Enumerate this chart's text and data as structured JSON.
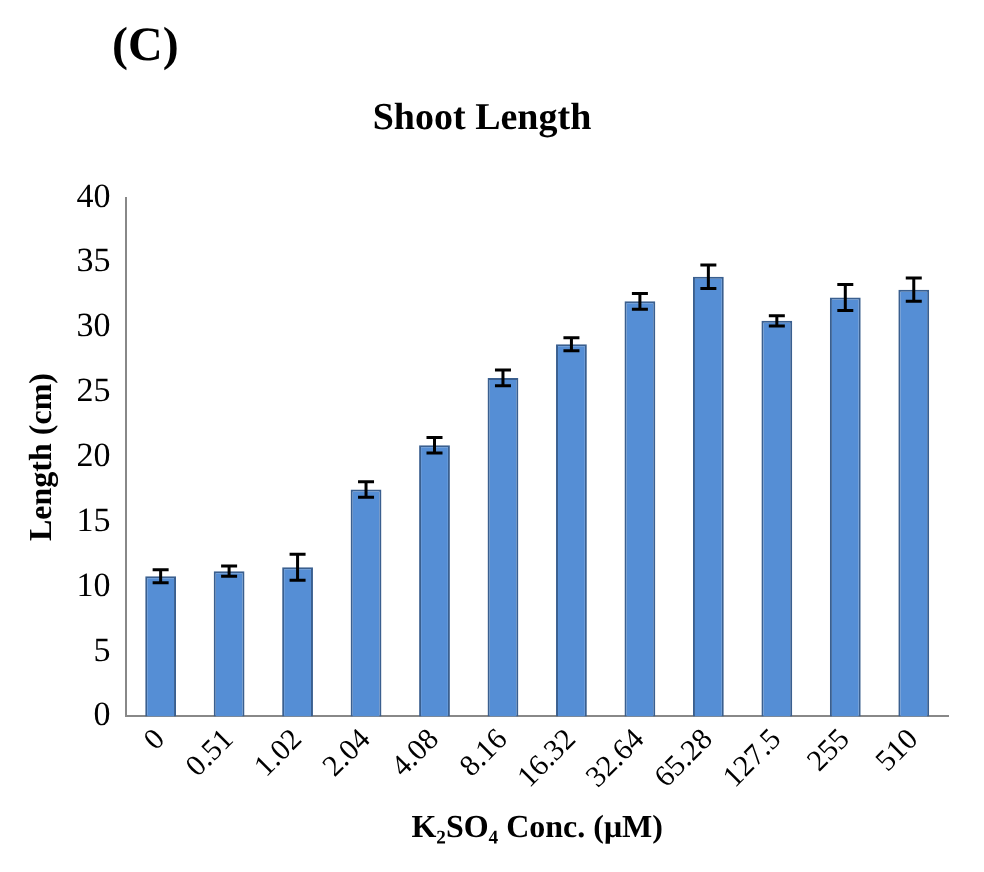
{
  "chart_data": {
    "type": "bar",
    "title": "Shoot Length",
    "xlabel": "K₂SO₄ Conc. (μM)",
    "ylabel": "Length (cm)",
    "annotations": [
      "(C)"
    ],
    "categories": [
      "0",
      "0.51",
      "1.02",
      "2.04",
      "4.08",
      "8.16",
      "16.32",
      "32.64",
      "65.28",
      "127.5",
      "255",
      "510"
    ],
    "values": [
      10.8,
      11.2,
      11.5,
      17.5,
      20.9,
      26.1,
      28.7,
      32.0,
      33.9,
      30.5,
      32.3,
      32.9
    ],
    "errors": [
      0.5,
      0.4,
      1.0,
      0.6,
      0.6,
      0.6,
      0.5,
      0.6,
      0.9,
      0.4,
      1.0,
      0.9
    ],
    "color": "#558ed5",
    "ylim": [
      0,
      40
    ],
    "yticks": [
      0,
      5,
      10,
      15,
      20,
      25,
      30,
      35,
      40
    ],
    "grid": false,
    "legend": false
  }
}
